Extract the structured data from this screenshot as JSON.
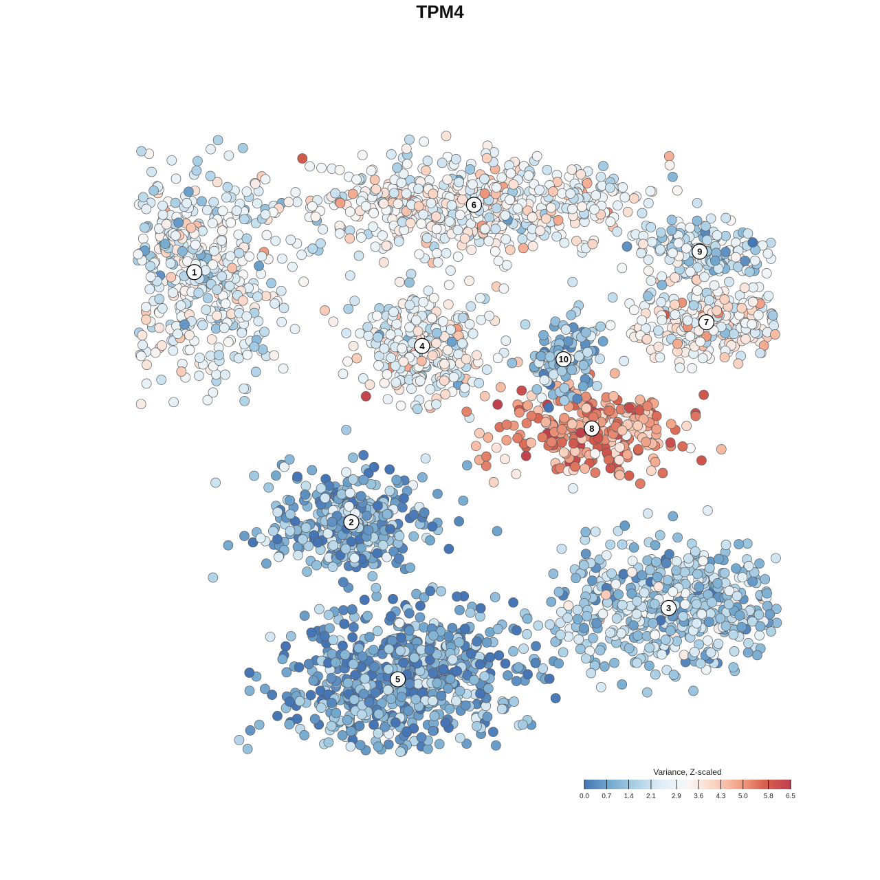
{
  "chart_data": {
    "type": "scatter",
    "title": "TPM4",
    "xlabel": "",
    "ylabel": "",
    "grid": false,
    "legend": {
      "title": "Variance, Z-scaled",
      "placement": "bottom-right",
      "ticks": [
        "0.0",
        "0.7",
        "1.4",
        "2.1",
        "2.9",
        "3.6",
        "4.3",
        "5.0",
        "5.8",
        "6.5"
      ],
      "range": [
        0.0,
        6.5
      ],
      "colors": [
        "#4575b4",
        "#74a9cf",
        "#abd0e6",
        "#e0eef6",
        "#f7f7f7",
        "#fbd5c4",
        "#f2a488",
        "#d6604d",
        "#c0404e"
      ]
    },
    "clusters": [
      {
        "id": "1",
        "x": 0.115,
        "y": 0.744,
        "value": 2.6
      },
      {
        "id": "2",
        "x": 0.348,
        "y": 0.365,
        "value": 1.0
      },
      {
        "id": "3",
        "x": 0.819,
        "y": 0.235,
        "value": 1.6
      },
      {
        "id": "4",
        "x": 0.453,
        "y": 0.632,
        "value": 2.9
      },
      {
        "id": "5",
        "x": 0.417,
        "y": 0.127,
        "value": 0.8
      },
      {
        "id": "6",
        "x": 0.53,
        "y": 0.846,
        "value": 3.0
      },
      {
        "id": "7",
        "x": 0.875,
        "y": 0.668,
        "value": 3.2
      },
      {
        "id": "8",
        "x": 0.705,
        "y": 0.507,
        "value": 5.0
      },
      {
        "id": "9",
        "x": 0.865,
        "y": 0.775,
        "value": 2.2
      },
      {
        "id": "10",
        "x": 0.663,
        "y": 0.612,
        "value": 1.3
      }
    ]
  }
}
